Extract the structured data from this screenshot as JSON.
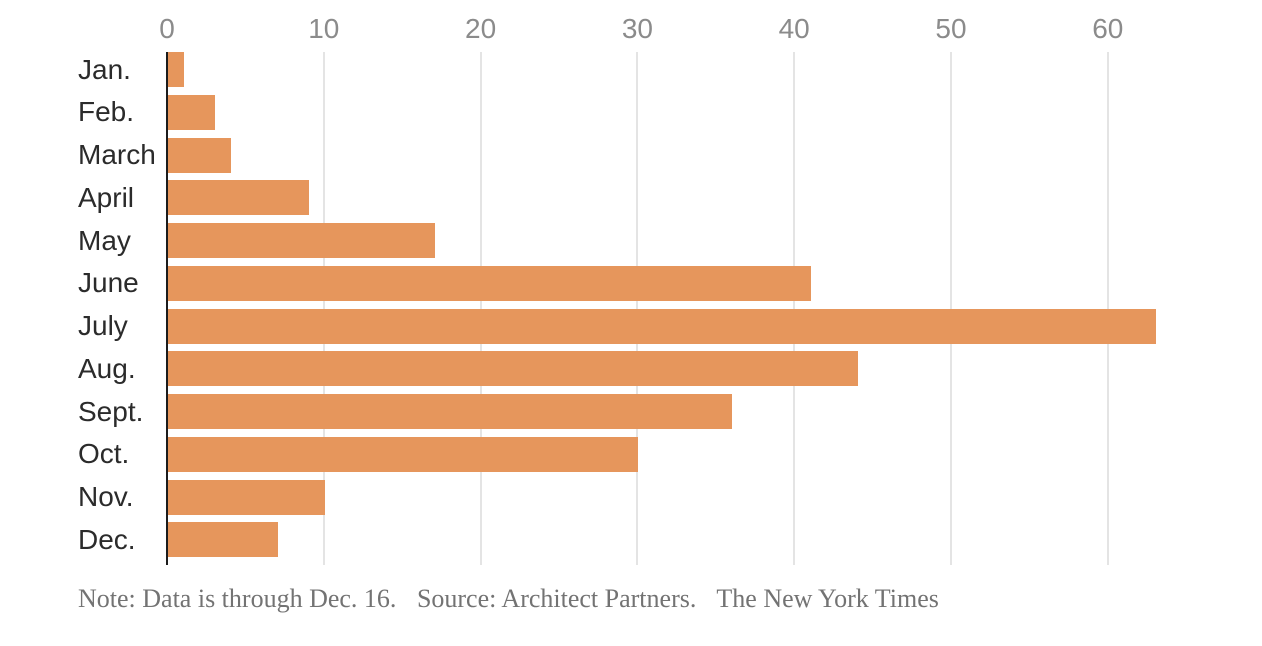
{
  "chart_data": {
    "type": "bar",
    "orientation": "horizontal",
    "title": "",
    "categories": [
      "Jan.",
      "Feb.",
      "March",
      "April",
      "May",
      "June",
      "July",
      "Aug.",
      "Sept.",
      "Oct.",
      "Nov.",
      "Dec."
    ],
    "values": [
      1,
      3,
      4,
      9,
      17,
      41,
      63,
      44,
      36,
      30,
      10,
      7
    ],
    "xlabel": "",
    "ylabel": "",
    "xticks": [
      0,
      10,
      20,
      30,
      40,
      50,
      60
    ],
    "xlim": [
      0,
      70
    ],
    "grid": true,
    "legend": false,
    "bar_color": "#e6965c",
    "gridline_color": "#e4e4e4",
    "zero_axis_color": "#1c1c1c",
    "tick_label_color": "#8b8b8b",
    "category_label_color": "#2b2b2b"
  },
  "footnote": {
    "note": "Note: Data is through Dec. 16.",
    "source": "Source: Architect Partners.",
    "credit": "The New York Times",
    "color": "#737373"
  }
}
